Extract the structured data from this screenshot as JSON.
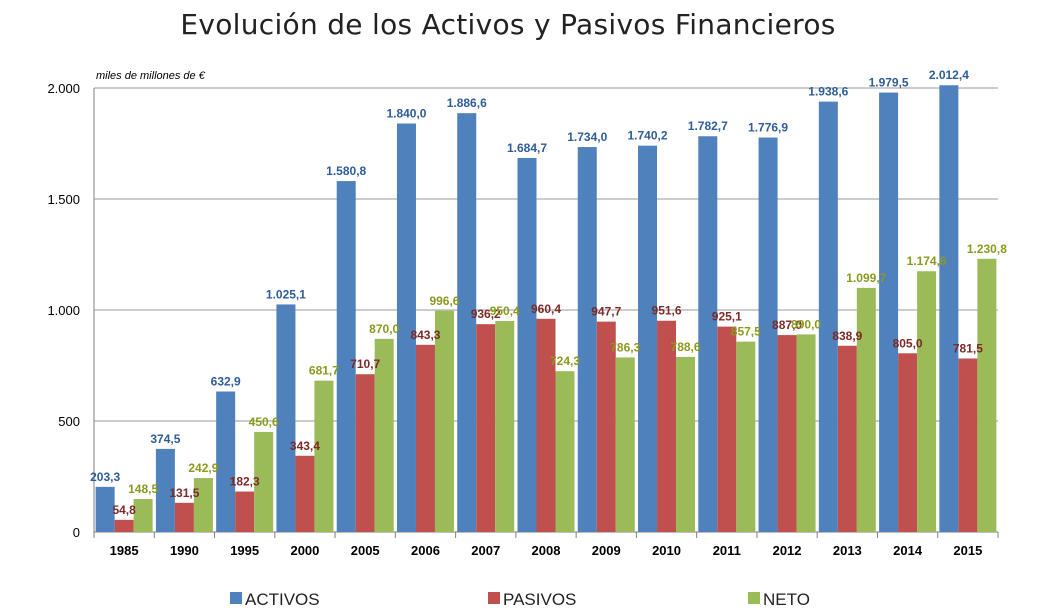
{
  "chart_data": {
    "type": "bar",
    "title": "Evolución de los Activos y Pasivos Financieros",
    "unit_label": "miles de millones de €",
    "categories": [
      "1985",
      "1990",
      "1995",
      "2000",
      "2005",
      "2006",
      "2007",
      "2008",
      "2009",
      "2010",
      "2011",
      "2012",
      "2013",
      "2014",
      "2015"
    ],
    "ylim": [
      0,
      2000
    ],
    "yticks": [
      0,
      500,
      1000,
      1500,
      2000
    ],
    "ytick_labels": [
      "0",
      "500",
      "1.000",
      "1.500",
      "2.000"
    ],
    "grid": true,
    "legend_position": "bottom",
    "series": [
      {
        "name": "ACTIVOS",
        "color": "#4F81BD",
        "label_color": "#2E5C9A",
        "values": [
          203.3,
          374.5,
          632.9,
          1025.1,
          1580.8,
          1840.0,
          1886.6,
          1684.7,
          1734.0,
          1740.2,
          1782.7,
          1776.9,
          1938.6,
          1979.5,
          2012.4
        ],
        "labels": [
          "203,3",
          "374,5",
          "632,9",
          "1.025,1",
          "1.580,8",
          "1.840,0",
          "1.886,6",
          "1.684,7",
          "1.734,0",
          "1.740,2",
          "1.782,7",
          "1.776,9",
          "1.938,6",
          "1.979,5",
          "2.012,4"
        ]
      },
      {
        "name": "PASIVOS",
        "color": "#C0504D",
        "label_color": "#7B2A27",
        "values": [
          54.8,
          131.5,
          182.3,
          343.4,
          710.7,
          843.3,
          936.2,
          960.4,
          947.7,
          951.6,
          925.1,
          887.0,
          838.9,
          805.0,
          781.5
        ],
        "labels": [
          "54,8",
          "131,5",
          "182,3",
          "343,4",
          "710,7",
          "843,3",
          "936,2",
          "960,4",
          "947,7",
          "951,6",
          "925,1",
          "887,0",
          "838,9",
          "805,0",
          "781,5"
        ]
      },
      {
        "name": "NETO",
        "color": "#9BBB59",
        "label_color": "#8A9A1E",
        "values": [
          148.5,
          242.9,
          450.6,
          681.7,
          870.0,
          996.6,
          950.4,
          724.3,
          786.3,
          788.6,
          857.5,
          890.0,
          1099.7,
          1174.6,
          1230.8
        ],
        "labels": [
          "148,5",
          "242,9",
          "450,6",
          "681,7",
          "870,0",
          "996,6",
          "950,4",
          "724,3",
          "786,3",
          "788,6",
          "857,5",
          "890,0",
          "1.099,7",
          "1.174,6",
          "1.230,8"
        ]
      }
    ]
  }
}
